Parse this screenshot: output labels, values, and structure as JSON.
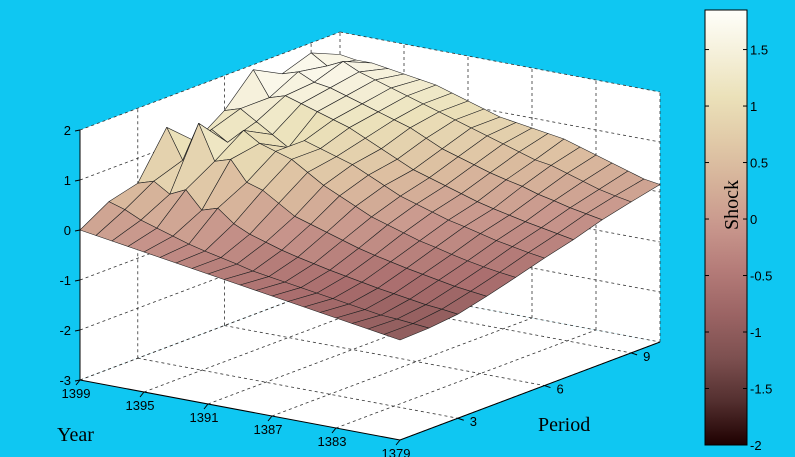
{
  "chart_data": {
    "type": "surface",
    "xlabel": "Period",
    "ylabel": "Year",
    "colorbar_label": "Shock",
    "x_ticks": [
      3,
      6,
      9
    ],
    "y_ticks": [
      1399,
      1395,
      1391,
      1387,
      1383,
      1379
    ],
    "z_ticks": [
      2,
      1,
      0,
      -1,
      -2,
      -3
    ],
    "zlim": [
      -3,
      2
    ],
    "colorbar_ticks": [
      "1.5",
      "1",
      "0.5",
      "0",
      "-0.5",
      "-1",
      "-1.5",
      "-2"
    ],
    "colorbar_range": [
      -2,
      1.85
    ],
    "grid": true,
    "colormap": "pink",
    "periods": [
      1,
      2,
      3,
      4,
      5,
      6,
      7,
      8,
      9,
      10
    ],
    "years": [
      1399,
      1398,
      1397,
      1396,
      1395,
      1394,
      1393,
      1392,
      1391,
      1390,
      1389,
      1388,
      1387,
      1386,
      1385,
      1384,
      1383,
      1382,
      1381,
      1380,
      1379
    ],
    "z": [
      [
        0.0,
        -0.05,
        -0.1,
        -0.15,
        -0.2,
        -0.25,
        -0.3,
        -0.35,
        -0.4,
        -0.45,
        -0.5,
        -0.55,
        -0.6,
        -0.65,
        -0.7,
        -0.75,
        -0.8,
        -0.85,
        -0.9,
        -0.95,
        -1.0
      ],
      [
        0.35,
        0.25,
        0.1,
        0.0,
        -0.1,
        -0.2,
        -0.28,
        -0.35,
        -0.42,
        -0.5,
        -0.55,
        -0.6,
        -0.65,
        -0.7,
        -0.75,
        -0.8,
        -0.85,
        -0.9,
        -0.92,
        -0.95,
        -0.98
      ],
      [
        0.5,
        0.6,
        0.4,
        0.55,
        0.2,
        0.3,
        0.05,
        -0.1,
        -0.2,
        -0.3,
        -0.38,
        -0.45,
        -0.52,
        -0.58,
        -0.64,
        -0.7,
        -0.75,
        -0.8,
        -0.85,
        -0.88,
        -0.92
      ],
      [
        1.4,
        0.8,
        1.6,
        0.9,
        1.0,
        0.6,
        0.5,
        0.3,
        0.1,
        0.0,
        -0.1,
        -0.2,
        -0.3,
        -0.38,
        -0.45,
        -0.52,
        -0.58,
        -0.64,
        -0.7,
        -0.74,
        -0.78
      ],
      [
        0.9,
        1.2,
        1.0,
        1.3,
        1.1,
        1.0,
        0.9,
        0.7,
        0.5,
        0.35,
        0.2,
        0.05,
        -0.05,
        -0.15,
        -0.25,
        -0.32,
        -0.4,
        -0.47,
        -0.53,
        -0.58,
        -0.62
      ],
      [
        1.3,
        1.4,
        1.2,
        1.0,
        0.8,
        1.0,
        0.9,
        0.8,
        0.7,
        0.55,
        0.4,
        0.25,
        0.15,
        0.05,
        -0.05,
        -0.12,
        -0.2,
        -0.28,
        -0.34,
        -0.4,
        -0.45
      ],
      [
        1.9,
        1.4,
        1.5,
        1.4,
        1.3,
        1.2,
        1.1,
        0.95,
        0.8,
        0.65,
        0.5,
        0.4,
        0.3,
        0.2,
        0.1,
        0.02,
        -0.05,
        -0.12,
        -0.18,
        -0.24,
        -0.3
      ],
      [
        1.6,
        1.7,
        1.55,
        1.5,
        1.4,
        1.3,
        1.2,
        1.1,
        1.0,
        0.85,
        0.7,
        0.6,
        0.5,
        0.4,
        0.32,
        0.25,
        0.15,
        0.08,
        0.0,
        -0.06,
        -0.12
      ],
      [
        1.8,
        1.6,
        1.75,
        1.6,
        1.5,
        1.4,
        1.3,
        1.2,
        1.1,
        1.0,
        0.9,
        0.8,
        0.7,
        0.6,
        0.5,
        0.45,
        0.35,
        0.25,
        0.15,
        0.08,
        0.02
      ],
      [
        1.55,
        1.5,
        1.5,
        1.45,
        1.4,
        1.35,
        1.3,
        1.2,
        1.1,
        1.0,
        0.9,
        0.85,
        0.8,
        0.75,
        0.7,
        0.6,
        0.5,
        0.4,
        0.3,
        0.2,
        0.15
      ]
    ]
  }
}
